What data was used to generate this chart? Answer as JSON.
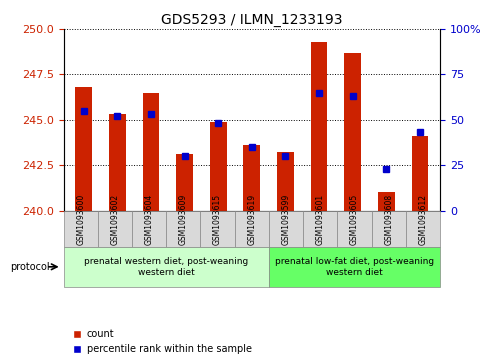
{
  "title": "GDS5293 / ILMN_1233193",
  "samples": [
    "GSM1093600",
    "GSM1093602",
    "GSM1093604",
    "GSM1093609",
    "GSM1093615",
    "GSM1093619",
    "GSM1093599",
    "GSM1093601",
    "GSM1093605",
    "GSM1093608",
    "GSM1093612"
  ],
  "red_values": [
    246.8,
    245.3,
    246.5,
    243.1,
    244.9,
    243.6,
    243.2,
    249.3,
    248.7,
    241.0,
    244.1
  ],
  "blue_values": [
    55,
    52,
    53,
    30,
    48,
    35,
    30,
    65,
    63,
    23,
    43
  ],
  "ylim_left": [
    240,
    250
  ],
  "ylim_right": [
    0,
    100
  ],
  "yticks_left": [
    240,
    242.5,
    245,
    247.5,
    250
  ],
  "yticks_right": [
    0,
    25,
    50,
    75,
    100
  ],
  "group1_label": "prenatal western diet, post-weaning\nwestern diet",
  "group2_label": "prenatal low-fat diet, post-weaning\nwestern diet",
  "group1_count": 6,
  "group2_count": 5,
  "protocol_label": "protocol",
  "legend_count_label": "count",
  "legend_pct_label": "percentile rank within the sample",
  "bar_color": "#cc2200",
  "dot_color": "#0000cc",
  "bar_width": 0.5,
  "group1_bg": "#ccffcc",
  "group2_bg": "#66ff66",
  "tick_bg": "#d9d9d9",
  "left_tick_color": "#cc2200",
  "right_tick_color": "#0000cc",
  "grid_color": "#000000",
  "fig_bg": "#ffffff"
}
